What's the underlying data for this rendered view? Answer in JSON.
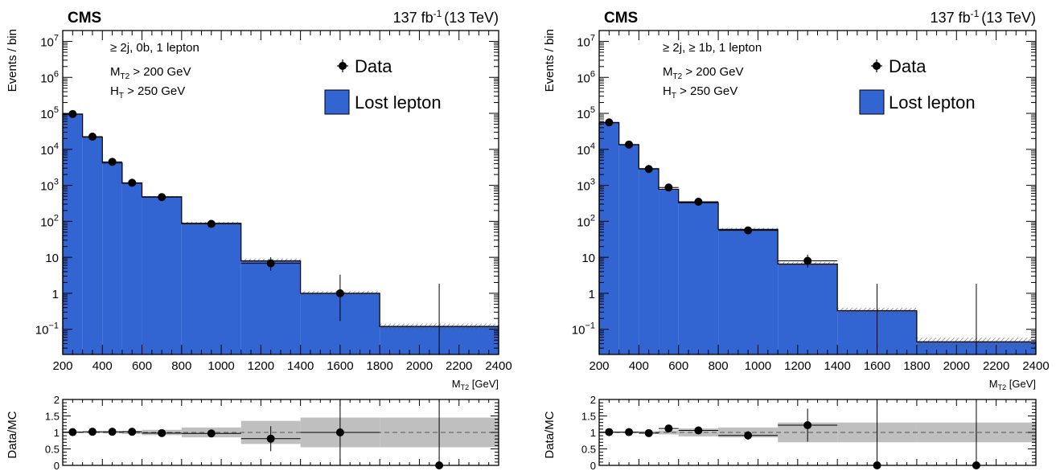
{
  "colors": {
    "mc_fill": "#3264d2",
    "unc_band": "#bfbfbf",
    "hatch": "#666666",
    "data_marker": "#000000"
  },
  "chart_data": [
    {
      "type": "bar",
      "experiment": "CMS",
      "lumi_sup": "-1",
      "lumi_prefix": "137 fb",
      "lumi_suffix": "(13 TeV)",
      "selection": [
        "≥ 2j, 0b, 1 lepton"
      ],
      "cut_mt2": {
        "main": "M",
        "sub": "T2",
        "rest": " > 200 GeV"
      },
      "cut_ht": {
        "main": "H",
        "sub": "T",
        "rest": " > 250 GeV"
      },
      "xlabel": {
        "main": "M",
        "sub": "T2",
        "rest": " [GeV]"
      },
      "ylabel": "Events / bin",
      "ratio_ylabel": "Data/MC",
      "legend": {
        "placement": "top-right",
        "data_label": "Data",
        "mc_label": "Lost lepton"
      },
      "xlim": [
        200,
        2400
      ],
      "ylim": [
        0.02,
        20000000
      ],
      "ylog": true,
      "x_ticks": [
        200,
        400,
        600,
        800,
        1000,
        1200,
        1400,
        1600,
        1800,
        2000,
        2200,
        2400
      ],
      "y_ticks": [
        {
          "v": 0.1,
          "base": "10",
          "exp": "−1"
        },
        {
          "v": 1,
          "base": "1",
          "exp": ""
        },
        {
          "v": 10,
          "base": "10",
          "exp": ""
        },
        {
          "v": 100,
          "base": "10",
          "exp": "2"
        },
        {
          "v": 1000,
          "base": "10",
          "exp": "3"
        },
        {
          "v": 10000,
          "base": "10",
          "exp": "4"
        },
        {
          "v": 100000,
          "base": "10",
          "exp": "5"
        },
        {
          "v": 1000000,
          "base": "10",
          "exp": "6"
        },
        {
          "v": 10000000,
          "base": "10",
          "exp": "7"
        }
      ],
      "bin_edges": [
        200,
        300,
        400,
        500,
        600,
        800,
        1100,
        1400,
        1800,
        2400
      ],
      "mc_values": [
        95000,
        22000,
        4200,
        1150,
        480,
        88,
        8.0,
        1.0,
        0.12
      ],
      "mc_unc_frac": [
        0.02,
        0.02,
        0.03,
        0.04,
        0.05,
        0.1,
        0.15,
        0.15,
        0.2
      ],
      "data": [
        {
          "x": 250,
          "y": 96000,
          "ey_lo": 300,
          "ey_hi": 300
        },
        {
          "x": 350,
          "y": 22500,
          "ey_lo": 150,
          "ey_hi": 150
        },
        {
          "x": 450,
          "y": 4500,
          "ey_lo": 67,
          "ey_hi": 67
        },
        {
          "x": 550,
          "y": 1180,
          "ey_lo": 34,
          "ey_hi": 34
        },
        {
          "x": 700,
          "y": 470,
          "ey_lo": 22,
          "ey_hi": 22
        },
        {
          "x": 950,
          "y": 85,
          "ey_lo": 9,
          "ey_hi": 9
        },
        {
          "x": 1250,
          "y": 6.8,
          "ey_lo": 2.6,
          "ey_hi": 3.3
        },
        {
          "x": 1600,
          "y": 1.0,
          "ey_lo": 0.83,
          "ey_hi": 2.3
        },
        {
          "x": 2100,
          "y": 0,
          "ey_lo": 0,
          "ey_hi": 1.84
        }
      ],
      "ratio": {
        "ylim": [
          0,
          2
        ],
        "y_ticks": [
          0,
          0.5,
          1,
          1.5,
          2
        ],
        "points": [
          {
            "x": 250,
            "y": 1.01,
            "ey": 0.02
          },
          {
            "x": 350,
            "y": 1.02,
            "ey": 0.02
          },
          {
            "x": 450,
            "y": 1.02,
            "ey": 0.03
          },
          {
            "x": 550,
            "y": 1.02,
            "ey": 0.04
          },
          {
            "x": 700,
            "y": 0.98,
            "ey": 0.05
          },
          {
            "x": 950,
            "y": 0.97,
            "ey": 0.11
          },
          {
            "x": 1250,
            "y": 0.81,
            "ey": 0.38
          },
          {
            "x": 1600,
            "y": 1.0,
            "ey": 1.3
          },
          {
            "x": 2100,
            "y": 0.0,
            "ey": 2.0
          }
        ],
        "unc_frac": [
          0.02,
          0.02,
          0.03,
          0.05,
          0.08,
          0.15,
          0.35,
          0.45,
          0.45
        ]
      }
    },
    {
      "type": "bar",
      "experiment": "CMS",
      "lumi_sup": "-1",
      "lumi_prefix": "137 fb",
      "lumi_suffix": "(13 TeV)",
      "selection": [
        "≥ 2j, ≥ 1b, 1 lepton"
      ],
      "cut_mt2": {
        "main": "M",
        "sub": "T2",
        "rest": " > 200 GeV"
      },
      "cut_ht": {
        "main": "H",
        "sub": "T",
        "rest": " > 250 GeV"
      },
      "xlabel": {
        "main": "M",
        "sub": "T2",
        "rest": " [GeV]"
      },
      "ylabel": "Events / bin",
      "ratio_ylabel": "Data/MC",
      "legend": {
        "placement": "top-right",
        "data_label": "Data",
        "mc_label": "Lost lepton"
      },
      "xlim": [
        200,
        2400
      ],
      "ylim": [
        0.02,
        20000000
      ],
      "ylog": true,
      "x_ticks": [
        200,
        400,
        600,
        800,
        1000,
        1200,
        1400,
        1600,
        1800,
        2000,
        2200,
        2400
      ],
      "y_ticks": [
        {
          "v": 0.1,
          "base": "10",
          "exp": "−1"
        },
        {
          "v": 1,
          "base": "1",
          "exp": ""
        },
        {
          "v": 10,
          "base": "10",
          "exp": ""
        },
        {
          "v": 100,
          "base": "10",
          "exp": "2"
        },
        {
          "v": 1000,
          "base": "10",
          "exp": "3"
        },
        {
          "v": 10000,
          "base": "10",
          "exp": "4"
        },
        {
          "v": 100000,
          "base": "10",
          "exp": "5"
        },
        {
          "v": 1000000,
          "base": "10",
          "exp": "6"
        },
        {
          "v": 10000000,
          "base": "10",
          "exp": "7"
        }
      ],
      "bin_edges": [
        200,
        300,
        400,
        500,
        600,
        800,
        1100,
        1400,
        1800,
        2400
      ],
      "mc_values": [
        55000,
        13500,
        2900,
        780,
        330,
        60,
        6.5,
        0.33,
        0.045
      ],
      "mc_unc_frac": [
        0.02,
        0.02,
        0.03,
        0.04,
        0.05,
        0.1,
        0.15,
        0.2,
        0.3
      ],
      "data": [
        {
          "x": 250,
          "y": 56000,
          "ey_lo": 240,
          "ey_hi": 240
        },
        {
          "x": 350,
          "y": 13600,
          "ey_lo": 117,
          "ey_hi": 117
        },
        {
          "x": 450,
          "y": 2850,
          "ey_lo": 53,
          "ey_hi": 53
        },
        {
          "x": 550,
          "y": 870,
          "ey_lo": 30,
          "ey_hi": 30
        },
        {
          "x": 700,
          "y": 350,
          "ey_lo": 19,
          "ey_hi": 19
        },
        {
          "x": 950,
          "y": 56,
          "ey_lo": 7.5,
          "ey_hi": 7.5
        },
        {
          "x": 1250,
          "y": 8.0,
          "ey_lo": 2.8,
          "ey_hi": 3.9
        },
        {
          "x": 1600,
          "y": 0,
          "ey_lo": 0,
          "ey_hi": 1.84
        },
        {
          "x": 2100,
          "y": 0,
          "ey_lo": 0,
          "ey_hi": 1.84
        }
      ],
      "ratio": {
        "ylim": [
          0,
          2
        ],
        "y_ticks": [
          0,
          0.5,
          1,
          1.5,
          2
        ],
        "points": [
          {
            "x": 250,
            "y": 1.01,
            "ey": 0.02
          },
          {
            "x": 350,
            "y": 1.01,
            "ey": 0.02
          },
          {
            "x": 450,
            "y": 0.98,
            "ey": 0.03
          },
          {
            "x": 550,
            "y": 1.12,
            "ey": 0.05
          },
          {
            "x": 700,
            "y": 1.06,
            "ey": 0.07
          },
          {
            "x": 950,
            "y": 0.91,
            "ey": 0.13
          },
          {
            "x": 1250,
            "y": 1.22,
            "ey": 0.5
          },
          {
            "x": 1600,
            "y": 0.0,
            "ey": 2.0
          },
          {
            "x": 2100,
            "y": 0.0,
            "ey": 2.0
          }
        ],
        "unc_frac": [
          0.02,
          0.02,
          0.04,
          0.06,
          0.12,
          0.15,
          0.3,
          0.3,
          0.3
        ]
      }
    }
  ]
}
